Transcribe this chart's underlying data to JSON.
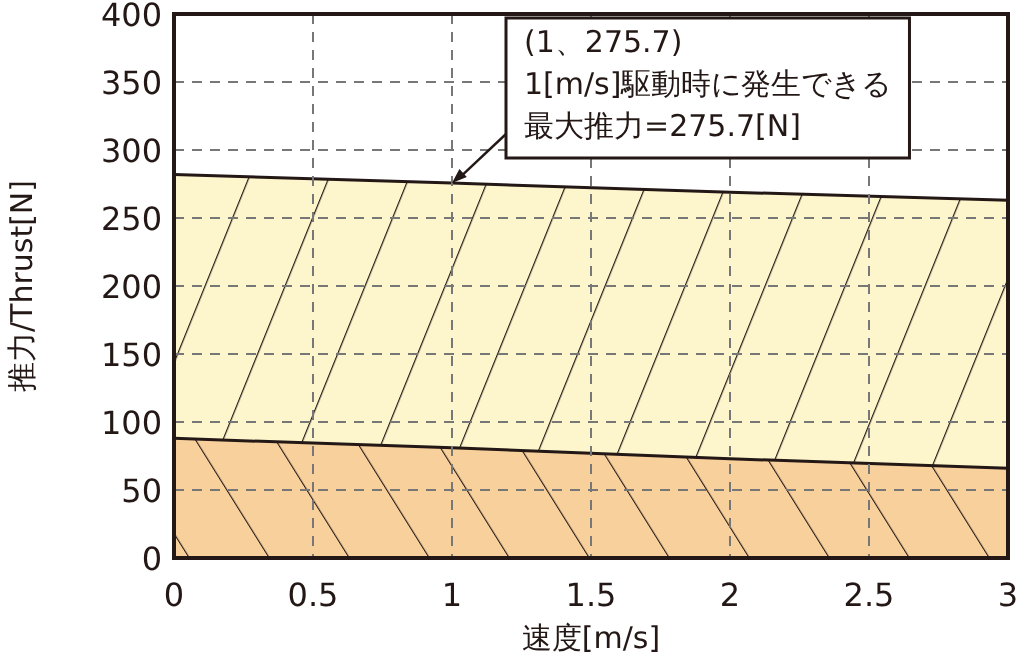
{
  "chart_data": {
    "type": "area",
    "xlabel": "速度[m/s]",
    "ylabel": "推力/Thrust[N]",
    "x": [
      0,
      1,
      2,
      3
    ],
    "series": [
      {
        "color": "#fdf5cc",
        "values": [
          282,
          275.7,
          269,
          263
        ]
      },
      {
        "color": "#f8d09c",
        "values": [
          88,
          81,
          73,
          66
        ]
      }
    ],
    "xlim": [
      0,
      3
    ],
    "xticks": [
      0,
      0.5,
      1,
      1.5,
      2,
      2.5,
      3
    ],
    "ylim": [
      0,
      400
    ],
    "yticks": [
      0,
      50,
      100,
      150,
      200,
      250,
      300,
      350,
      400
    ],
    "grid": true,
    "annotations": [
      "(1、275.7)",
      "1[m/s]駆動時に発生できる",
      {
        "text": "最大推力=275.7[N]",
        "x": 1,
        "y": 275.7
      }
    ]
  }
}
